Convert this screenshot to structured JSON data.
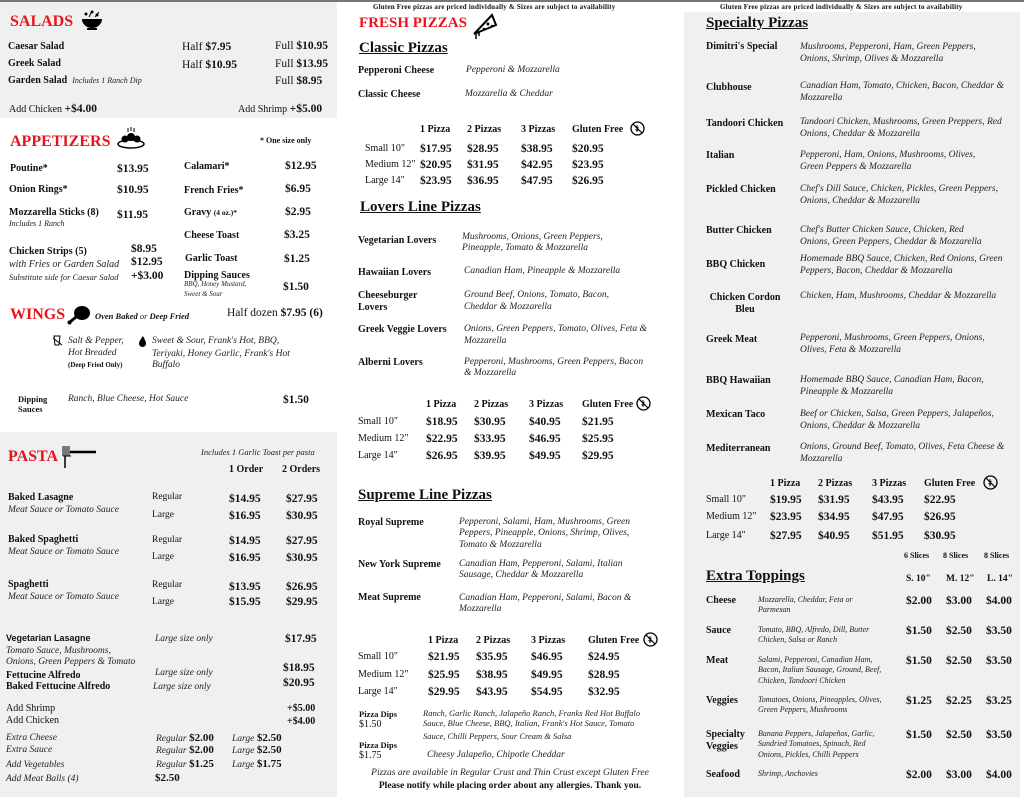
{
  "notice": "Gluten Free pizzas are priced individually & Sizes are subject to availability",
  "colors": {
    "heading": "#e8141b",
    "panel": "#f0f0f0"
  },
  "salads": {
    "title": "SALADS",
    "icon": "salad-bowl-icon",
    "items": [
      {
        "name": "Caesar Salad",
        "half_label": "Half",
        "half": "$7.95",
        "full_label": "Full",
        "full": "$10.95"
      },
      {
        "name": "Greek Salad",
        "half_label": "Half",
        "half": "$10.95",
        "full_label": "Full",
        "full": "$13.95"
      },
      {
        "name": "Garden Salad",
        "note": "Includes 1 Ranch Dip",
        "full_label": "Full",
        "full": "$8.95"
      }
    ],
    "add_chicken": "Add Chicken",
    "add_chicken_price": "+$4.00",
    "add_shrimp": "Add Shrimp",
    "add_shrimp_price": "+$5.00"
  },
  "appetizers": {
    "title": "APPETIZERS",
    "note": "* One size only",
    "items": [
      {
        "name": "Poutine*",
        "price": "$13.95"
      },
      {
        "name": "Onion Rings*",
        "price": "$10.95"
      },
      {
        "name": "Mozzarella Sticks  (8)",
        "note": "Includes 1 Ranch",
        "price": "$11.95"
      },
      {
        "name": "Chicken Strips (5)",
        "price": "$8.95",
        "option": "with Fries or Garden Salad",
        "option_price": "$12.95",
        "sub": "Substitute side for Caesar Salad",
        "sub_price": "+$3.00"
      },
      {
        "name": "Calamari*",
        "price": "$12.95"
      },
      {
        "name": "French Fries*",
        "price": "$6.95"
      },
      {
        "name": "Gravy",
        "size": "(4 oz.)*",
        "price": "$2.95"
      },
      {
        "name": "Cheese Toast",
        "price": "$3.25"
      },
      {
        "name": "Garlic Toast",
        "price": "$1.25"
      },
      {
        "name": "Dipping Sauces",
        "note1": "BBQ, Honey Mustard,",
        "note2": "Sweet & Sour",
        "price": "$1.50"
      }
    ]
  },
  "wings": {
    "title": "WINGS",
    "style1": "Oven Baked",
    "or": "or",
    "style2": "Deep Fried",
    "qty_label": "Half dozen",
    "price": "$7.95 (6)",
    "dry1": "Salt & Pepper,",
    "dry2": "Hot Breaded",
    "dry_note": "(Deep Fried Only)",
    "wet1": "Sweet & Sour, Frank's Hot, BBQ,",
    "wet2": "Teriyaki, Honey Garlic, Frank's Hot",
    "wet3": "Buffalo",
    "dip1": "Dipping",
    "dip2": "Sauces",
    "dip_desc": "Ranch, Blue Cheese, Hot Sauce",
    "dip_price": "$1.50"
  },
  "pasta": {
    "title": "PASTA",
    "note": "Includes 1 Garlic Toast per pasta",
    "col1": "1 Order",
    "col2": "2 Orders",
    "items": [
      {
        "name": "Baked Lasagne",
        "desc": "Meat Sauce or Tomato Sauce",
        "reg": "Regular",
        "lg": "Large",
        "r1": "$14.95",
        "r2": "$27.95",
        "l1": "$16.95",
        "l2": "$30.95"
      },
      {
        "name": "Baked Spaghetti",
        "desc": "Meat Sauce or Tomato Sauce",
        "reg": "Regular",
        "lg": "Large",
        "r1": "$14.95",
        "r2": "$27.95",
        "l1": "$16.95",
        "l2": "$30.95"
      },
      {
        "name": "Spaghetti",
        "desc": "Meat Sauce or Tomato Sauce",
        "reg": "Regular",
        "lg": "Large",
        "r1": "$13.95",
        "r2": "$26.95",
        "l1": "$15.95",
        "l2": "$29.95"
      }
    ],
    "veg": {
      "name": "Vegetarian Lasagne",
      "desc1": "Tomato Sauce, Mushrooms,",
      "desc2": "Onions, Green Peppers & Tomato",
      "size": "Large size only",
      "price": "$17.95"
    },
    "fett": {
      "name": "Fettucine Alfredo",
      "size": "Large size only",
      "price": "$18.95"
    },
    "bfett": {
      "name": "Baked Fettucine Alfredo",
      "size": "Large size only",
      "price": "$20.95"
    },
    "add_shrimp": "Add Shrimp",
    "add_shrimp_price": "+$5.00",
    "add_chicken": "Add Chicken",
    "add_chicken_price": "+$4.00",
    "extras": [
      {
        "name": "Extra Cheese",
        "reg": "Regular",
        "rp": "$2.00",
        "lg": "Large",
        "lp": "$2.50"
      },
      {
        "name": "Extra Sauce",
        "reg": "Regular",
        "rp": "$2.00",
        "lg": "Large",
        "lp": "$2.50"
      },
      {
        "name": "Add Vegetables",
        "reg": "Regular",
        "rp": "$1.25",
        "lg": "Large",
        "lp": "$1.75"
      },
      {
        "name": "Add Meat Balls (4)",
        "rp": "$2.50"
      }
    ]
  },
  "fresh": {
    "title": "FRESH PIZZAS"
  },
  "cols": {
    "c1": "1 Pizza",
    "c2": "2 Pizzas",
    "c3": "3 Pizzas",
    "gf": "Gluten Free",
    "small": "Small 10\"",
    "medium": "Medium 12\"",
    "large": "Large 14\""
  },
  "classic": {
    "title": "Classic Pizzas",
    "items": [
      {
        "name": "Pepperoni Cheese",
        "desc": "Pepperoni & Mozzarella"
      },
      {
        "name": "Classic Cheese",
        "desc": "Mozzarella & Cheddar"
      }
    ],
    "prices": [
      [
        "$17.95",
        "$28.95",
        "$38.95",
        "$20.95"
      ],
      [
        "$20.95",
        "$31.95",
        "$42.95",
        "$23.95"
      ],
      [
        "$23.95",
        "$36.95",
        "$47.95",
        "$26.95"
      ]
    ]
  },
  "lovers": {
    "title": "Lovers Line Pizzas",
    "items": [
      {
        "name": "Vegetarian Lovers",
        "desc1": "Mushrooms, Onions, Green Peppers,",
        "desc2": "Pineapple, Tomato & Mozzarella"
      },
      {
        "name": "Hawaiian Lovers",
        "desc1": "Canadian Ham, Pineapple & Mozzarella"
      },
      {
        "name": "Cheeseburger",
        "name2": "Lovers",
        "desc1": "Ground Beef, Onions, Tomato, Bacon,",
        "desc2": "Cheddar & Mozzarella"
      },
      {
        "name": "Greek Veggie Lovers",
        "desc1": "Onions, Green Peppers, Tomato, Olives, Feta &",
        "desc2": "Mozzarella"
      },
      {
        "name": "Alberni Lovers",
        "desc1": "Pepperoni, Mushrooms, Green Peppers, Bacon",
        "desc2": "& Mozzarella"
      }
    ],
    "prices": [
      [
        "$18.95",
        "$30.95",
        "$40.95",
        "$21.95"
      ],
      [
        "$22.95",
        "$33.95",
        "$46.95",
        "$25.95"
      ],
      [
        "$26.95",
        "$39.95",
        "$49.95",
        "$29.95"
      ]
    ]
  },
  "supreme": {
    "title": "Supreme Line Pizzas",
    "items": [
      {
        "name": "Royal Supreme",
        "desc1": "Pepperoni, Salami, Ham, Mushrooms, Green",
        "desc2": "Peppers, Pineapple, Onions, Shrimp, Olives,",
        "desc3": "Tomato & Mozzarella"
      },
      {
        "name": "New York Supreme",
        "desc1": "Canadian Ham, Pepperoni, Salami, Italian",
        "desc2": "Sausage, Cheddar & Mozzarella"
      },
      {
        "name": "Meat Supreme",
        "desc1": "Canadian Ham, Pepperoni, Salami, Bacon &",
        "desc2": "Mozzarella"
      }
    ],
    "prices": [
      [
        "$21.95",
        "$35.95",
        "$46.95",
        "$24.95"
      ],
      [
        "$25.95",
        "$38.95",
        "$49.95",
        "$28.95"
      ],
      [
        "$29.95",
        "$43.95",
        "$54.95",
        "$32.95"
      ]
    ]
  },
  "dips": [
    {
      "label": "Pizza Dips",
      "price": "$1.50",
      "desc1": "Ranch, Garlic Ranch, Jalapeño Ranch, Franks Red Hot Buffalo",
      "desc2": "Sauce, Blue Cheese, BBQ, Italian, Frank's Hot Sauce, Tomato",
      "desc3": "Sauce, Chilli Peppers, Sour Cream & Salsa"
    },
    {
      "label": "Pizza Dips",
      "price": "$1.75",
      "desc1": "Cheesy Jalapeño, Chipotle Cheddar"
    }
  ],
  "footer": {
    "crust": "Pizzas are available in Regular Crust and Thin Crust except  Gluten Free",
    "allergy": "Please notify while placing order about any allergies. Thank you."
  },
  "specialty": {
    "title": "Specialty Pizzas",
    "items": [
      {
        "name": "Dimitri's Special",
        "desc1": "Mushrooms, Pepperoni, Ham, Green Peppers,",
        "desc2": "Onions, Shrimp, Olives & Mozzarella"
      },
      {
        "name": "Clubhouse",
        "desc1": "Canadian Ham, Tomato, Chicken, Bacon, Cheddar &",
        "desc2": "Mozzarella"
      },
      {
        "name": "Tandoori Chicken",
        "desc1": "Tandoori Chicken, Mushrooms, Green Preppers, Red",
        "desc2": "Onions, Cheddar & Mozzarella"
      },
      {
        "name": "Italian",
        "desc1": "Pepperoni, Ham, Onions, Mushrooms, Olives,",
        "desc2": "Green Peppers & Mozzarella"
      },
      {
        "name": "Pickled Chicken",
        "desc1": "Chef's Dill Sauce, Chicken, Pickles, Green Peppers,",
        "desc2": "Onions, Cheddar & Mozzarella"
      },
      {
        "name": "Butter Chicken",
        "desc1": "Chef's Butter Chicken Sauce, Chicken, Red",
        "desc2": "Onions, Green Peppers, Cheddar & Mozzarella"
      },
      {
        "name": "BBQ Chicken",
        "desc1": "Homemade BBQ Sauce, Chicken, Red Onions, Green",
        "desc2": "Peppers, Bacon, Cheddar & Mozzarella"
      },
      {
        "name": "Chicken Cordon",
        "name2": "Bleu",
        "desc1": "Chicken, Ham, Mushrooms, Cheddar & Mozzarella"
      },
      {
        "name": "Greek Meat",
        "desc1": "Pepperoni, Mushrooms, Green Peppers, Onions,",
        "desc2": "Olives, Feta & Mozzarella"
      },
      {
        "name": "BBQ Hawaiian",
        "desc1": "Homemade BBQ Sauce, Canadian Ham, Bacon,",
        "desc2": "Pineapple & Mozzarella"
      },
      {
        "name": "Mexican Taco",
        "desc1": "Beef or Chicken, Salsa, Green Peppers, Jalapeños,",
        "desc2": "Onions, Cheddar & Mozzarella"
      },
      {
        "name": "Mediterranean",
        "desc1": "Onions, Ground Beef, Tomato, Olives, Feta Cheese &",
        "desc2": "Mozzarella"
      }
    ],
    "prices": [
      [
        "$19.95",
        "$31.95",
        "$43.95",
        "$22.95"
      ],
      [
        "$23.95",
        "$34.95",
        "$47.95",
        "$26.95"
      ],
      [
        "$27.95",
        "$40.95",
        "$51.95",
        "$30.95"
      ]
    ]
  },
  "toppings": {
    "title": "Extra Toppings",
    "slices": [
      "6 Slices",
      "8 Slices",
      "8 Slices"
    ],
    "sizes": [
      "S. 10\"",
      "M. 12\"",
      "L. 14\""
    ],
    "items": [
      {
        "name": "Cheese",
        "desc1": "Mozzarella, Cheddar, Feta or",
        "desc2": "Parmesan",
        "p": [
          "$2.00",
          "$3.00",
          "$4.00"
        ]
      },
      {
        "name": "Sauce",
        "desc1": "Tomato, BBQ, Alfredo, Dill, Butter",
        "desc2": "Chicken, Salsa or Ranch",
        "p": [
          "$1.50",
          "$2.50",
          "$3.50"
        ]
      },
      {
        "name": "Meat",
        "desc1": "Salami, Pepperoni, Canadian Ham,",
        "desc2": "Bacon, Italian Sausage, Ground, Beef,",
        "desc3": "Chicken, Tandoori Chicken",
        "p": [
          "$1.50",
          "$2.50",
          "$3.50"
        ]
      },
      {
        "name": "Veggies",
        "desc1": "Tomatoes, Onions, Pineapples, Olives,",
        "desc2": "Green Peppers, Mushrooms",
        "p": [
          "$1.25",
          "$2.25",
          "$3.25"
        ]
      },
      {
        "name": "Specialty",
        "name2": "Veggies",
        "desc1": "Banana Peppers, Jalapeños, Garlic,",
        "desc2": "Sundried Tomatoes, Spinach, Red",
        "desc3": "Onions, Pickles, Chilli Peppers",
        "p": [
          "$1.50",
          "$2.50",
          "$3.50"
        ]
      },
      {
        "name": "Seafood",
        "desc1": "Shrimp, Anchovies",
        "p": [
          "$2.00",
          "$3.00",
          "$4.00"
        ]
      }
    ]
  }
}
